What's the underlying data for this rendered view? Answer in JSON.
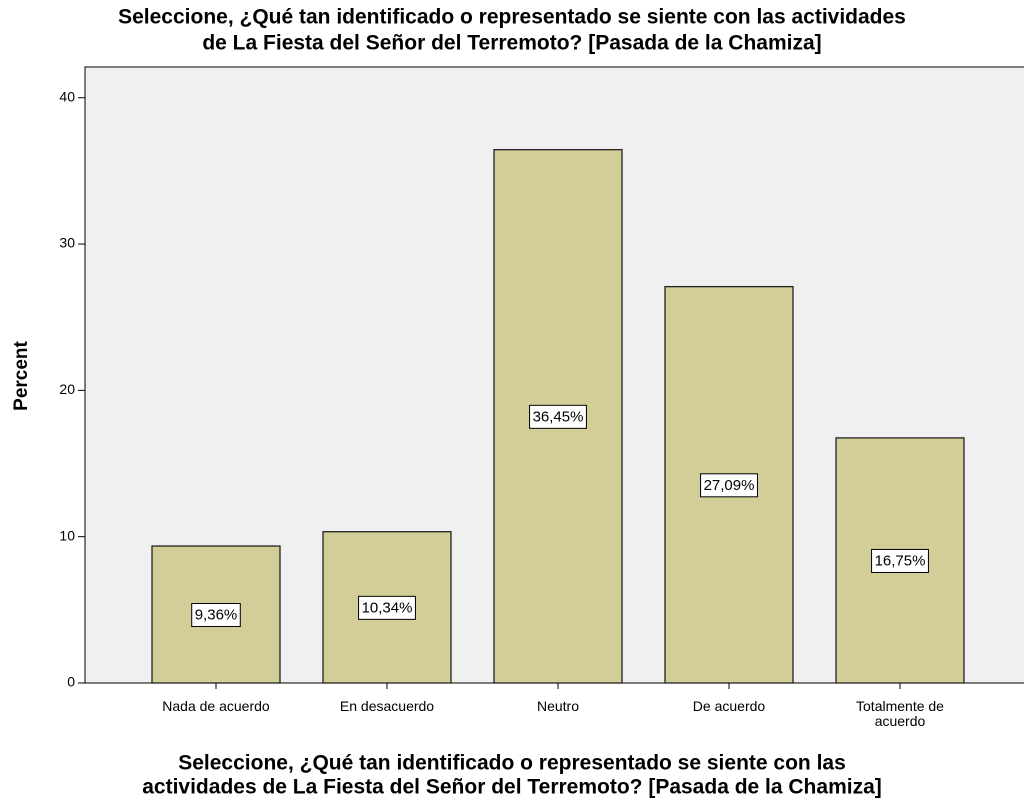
{
  "chart_data": {
    "type": "bar",
    "title": [
      "Seleccione, ¿Qué tan identificado o representado se siente con las actividades",
      "de La Fiesta del Señor del Terremoto? [Pasada de la Chamiza]"
    ],
    "x_label": [
      "Seleccione, ¿Qué tan identificado o representado se siente con las",
      "actividades de La Fiesta del Señor del Terremoto? [Pasada de la Chamiza]"
    ],
    "y_label": "Percent",
    "categories": [
      "Nada de acuerdo",
      "En desacuerdo",
      "Neutro",
      "De acuerdo",
      "Totalmente de acuerdo"
    ],
    "values": [
      9.36,
      10.34,
      36.45,
      27.09,
      16.75
    ],
    "value_labels": [
      "9,36%",
      "10,34%",
      "36,45%",
      "27,09%",
      "16,75%"
    ],
    "color": "#d3ce97",
    "ylim": [
      0,
      42.1
    ],
    "yticks": [
      0,
      10,
      20,
      30,
      40
    ],
    "grid": false
  }
}
